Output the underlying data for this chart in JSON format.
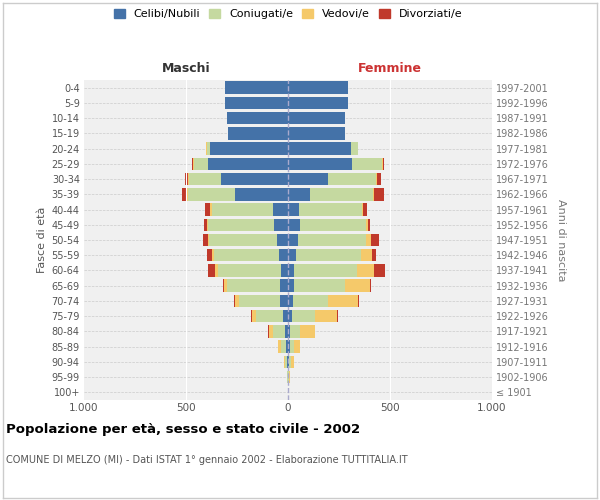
{
  "age_groups": [
    "100+",
    "95-99",
    "90-94",
    "85-89",
    "80-84",
    "75-79",
    "70-74",
    "65-69",
    "60-64",
    "55-59",
    "50-54",
    "45-49",
    "40-44",
    "35-39",
    "30-34",
    "25-29",
    "20-24",
    "15-19",
    "10-14",
    "5-9",
    "0-4"
  ],
  "birth_years": [
    "≤ 1901",
    "1902-1906",
    "1907-1911",
    "1912-1916",
    "1917-1921",
    "1922-1926",
    "1927-1931",
    "1932-1936",
    "1937-1941",
    "1942-1946",
    "1947-1951",
    "1952-1956",
    "1957-1961",
    "1962-1966",
    "1967-1971",
    "1972-1976",
    "1977-1981",
    "1982-1986",
    "1987-1991",
    "1992-1996",
    "1997-2001"
  ],
  "males": {
    "celibi": [
      0,
      2,
      5,
      8,
      15,
      25,
      40,
      40,
      35,
      45,
      55,
      70,
      75,
      260,
      330,
      390,
      380,
      295,
      300,
      310,
      310
    ],
    "coniugati": [
      0,
      3,
      10,
      25,
      60,
      130,
      200,
      260,
      310,
      320,
      330,
      320,
      300,
      230,
      155,
      70,
      15,
      0,
      0,
      0,
      0
    ],
    "vedovi": [
      0,
      2,
      5,
      15,
      20,
      20,
      20,
      15,
      15,
      10,
      5,
      5,
      5,
      5,
      5,
      5,
      5,
      0,
      0,
      0,
      0
    ],
    "divorziati": [
      0,
      0,
      0,
      0,
      5,
      5,
      5,
      5,
      30,
      20,
      25,
      15,
      25,
      25,
      15,
      5,
      0,
      0,
      0,
      0,
      0
    ]
  },
  "females": {
    "nubili": [
      0,
      2,
      5,
      8,
      10,
      20,
      25,
      30,
      30,
      40,
      50,
      60,
      55,
      110,
      195,
      315,
      310,
      280,
      280,
      295,
      295
    ],
    "coniugate": [
      0,
      2,
      8,
      20,
      50,
      110,
      170,
      250,
      310,
      320,
      330,
      320,
      310,
      305,
      235,
      145,
      35,
      0,
      0,
      0,
      0
    ],
    "vedove": [
      0,
      5,
      15,
      30,
      70,
      110,
      150,
      120,
      80,
      50,
      25,
      10,
      5,
      5,
      5,
      5,
      0,
      0,
      0,
      0,
      0
    ],
    "divorziate": [
      0,
      0,
      0,
      0,
      0,
      5,
      5,
      5,
      55,
      20,
      40,
      10,
      15,
      50,
      20,
      5,
      0,
      0,
      0,
      0,
      0
    ]
  },
  "colors": {
    "celibi": "#4472a8",
    "coniugati": "#c5d9a0",
    "vedovi": "#f5c96a",
    "divorziati": "#c0392b"
  },
  "xlim": 1000,
  "title": "Popolazione per età, sesso e stato civile - 2002",
  "subtitle": "COMUNE DI MELZO (MI) - Dati ISTAT 1° gennaio 2002 - Elaborazione TUTTITALIA.IT",
  "ylabel_left": "Fasce di età",
  "ylabel_right": "Anni di nascita",
  "xlabel_left": "Maschi",
  "xlabel_right": "Femmine",
  "background": "#f0f0f0"
}
